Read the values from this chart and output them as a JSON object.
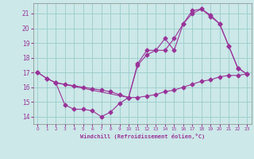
{
  "xlabel": "Windchill (Refroidissement éolien,°C)",
  "bg_color": "#cce8e8",
  "grid_color": "#99cccc",
  "line_color": "#993399",
  "xlim": [
    -0.5,
    23.5
  ],
  "ylim": [
    13.5,
    21.7
  ],
  "yticks": [
    14,
    15,
    16,
    17,
    18,
    19,
    20,
    21
  ],
  "xticks": [
    0,
    1,
    2,
    3,
    4,
    5,
    6,
    7,
    8,
    9,
    10,
    11,
    12,
    13,
    14,
    15,
    16,
    17,
    18,
    19,
    20,
    21,
    22,
    23
  ],
  "line1_x": [
    0,
    1,
    2,
    3,
    4,
    5,
    6,
    7,
    8,
    9,
    10,
    11,
    12,
    13,
    14,
    15,
    16,
    17,
    18,
    19,
    20,
    21,
    22,
    23
  ],
  "line1_y": [
    17.0,
    16.6,
    16.3,
    16.2,
    16.1,
    16.0,
    15.9,
    15.8,
    15.7,
    15.5,
    15.3,
    15.3,
    15.4,
    15.5,
    15.7,
    15.8,
    16.0,
    16.2,
    16.4,
    16.5,
    16.7,
    16.8,
    16.8,
    16.9
  ],
  "line2_x": [
    0,
    1,
    2,
    10,
    11,
    12,
    13,
    14,
    15,
    16,
    17,
    18,
    19,
    20,
    21,
    22,
    23
  ],
  "line2_y": [
    17.0,
    16.6,
    16.3,
    15.3,
    17.5,
    18.2,
    18.5,
    18.5,
    19.3,
    20.3,
    21.0,
    21.3,
    20.9,
    20.3,
    18.8,
    17.3,
    16.9
  ],
  "line3_x": [
    2,
    3,
    4,
    5,
    6,
    7,
    8,
    9,
    10,
    11,
    12,
    13,
    14,
    15,
    16,
    17,
    18,
    19,
    20,
    21,
    22,
    23
  ],
  "line3_y": [
    16.3,
    14.8,
    14.5,
    14.5,
    14.4,
    14.0,
    14.3,
    14.9,
    15.3,
    17.6,
    18.5,
    18.5,
    19.3,
    18.5,
    20.3,
    21.2,
    21.3,
    20.8,
    20.3,
    18.8,
    17.3,
    16.9
  ]
}
